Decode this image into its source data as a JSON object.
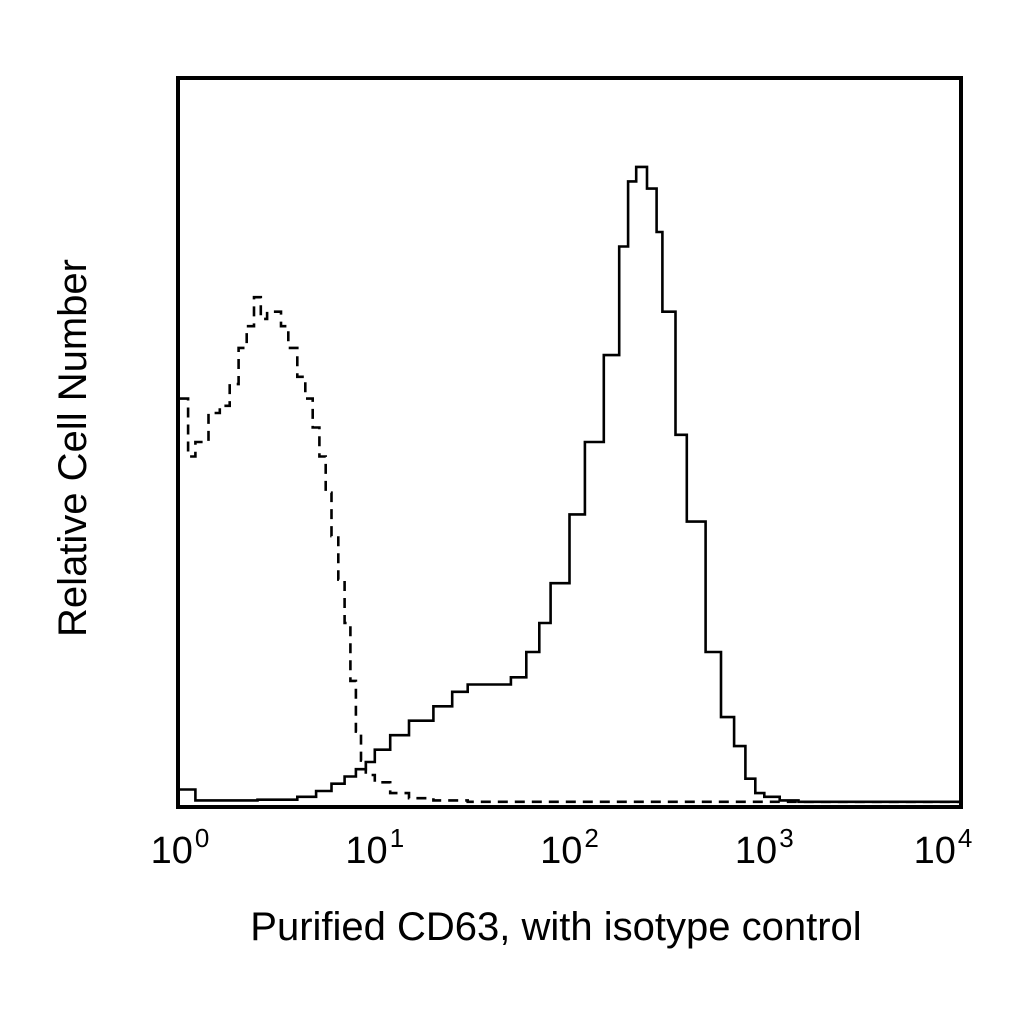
{
  "chart_data": {
    "type": "line",
    "title": "",
    "xlabel": "Purified CD63, with isotype control",
    "ylabel": "Relative Cell Number",
    "x_scale": "log",
    "xlim": [
      1,
      10000
    ],
    "ylim": [
      0,
      100
    ],
    "grid": false,
    "legend": "none",
    "x_ticks": [
      {
        "base": "10",
        "exp": "0"
      },
      {
        "base": "10",
        "exp": "1"
      },
      {
        "base": "10",
        "exp": "2"
      },
      {
        "base": "10",
        "exp": "3"
      },
      {
        "base": "10",
        "exp": "4"
      }
    ],
    "series": [
      {
        "style": "solid",
        "color": "#000000",
        "x": [
          1,
          1.2,
          1.5,
          2,
          2.5,
          3,
          4,
          5,
          6,
          7,
          8,
          9,
          10,
          12,
          15,
          20,
          25,
          30,
          40,
          50,
          60,
          70,
          80,
          100,
          120,
          150,
          180,
          200,
          220,
          250,
          280,
          300,
          350,
          400,
          500,
          600,
          700,
          800,
          900,
          1000,
          1200,
          1500,
          2000,
          3000,
          4000,
          5000,
          7000,
          10000
        ],
        "y": [
          2,
          0.5,
          0.5,
          0.5,
          0.6,
          0.6,
          1,
          1.8,
          2.8,
          3.8,
          4.8,
          5.8,
          7.5,
          9.5,
          11.5,
          13.5,
          15.5,
          16.5,
          16.5,
          17.5,
          21,
          25,
          30.5,
          40,
          50,
          62,
          77,
          86,
          88,
          85,
          79,
          68,
          51,
          39,
          21,
          12,
          8,
          3.5,
          1.5,
          1,
          0.5,
          0.3,
          0.3,
          0.3,
          0.3,
          0.3,
          0.3,
          0.3
        ]
      },
      {
        "style": "dashed",
        "color": "#000000",
        "x": [
          1,
          1.1,
          1.2,
          1.4,
          1.6,
          1.8,
          2,
          2.2,
          2.4,
          2.6,
          2.8,
          3,
          3.3,
          3.6,
          4,
          4.4,
          4.8,
          5.2,
          5.6,
          6,
          6.5,
          7,
          7.5,
          8,
          8.5,
          9,
          10,
          12,
          15,
          20,
          30,
          50,
          100,
          200,
          500,
          1000,
          2000,
          5000,
          10000
        ],
        "y": [
          56,
          48,
          50,
          54,
          55,
          58,
          63,
          66,
          70,
          67,
          68,
          68,
          66,
          63,
          59,
          56,
          52,
          48,
          43,
          37,
          31,
          25,
          17,
          10,
          6,
          4,
          3,
          1.5,
          0.8,
          0.5,
          0.3,
          0.3,
          0.3,
          0.3,
          0.3,
          0.3,
          0.3,
          0.3,
          0.3
        ]
      }
    ]
  }
}
